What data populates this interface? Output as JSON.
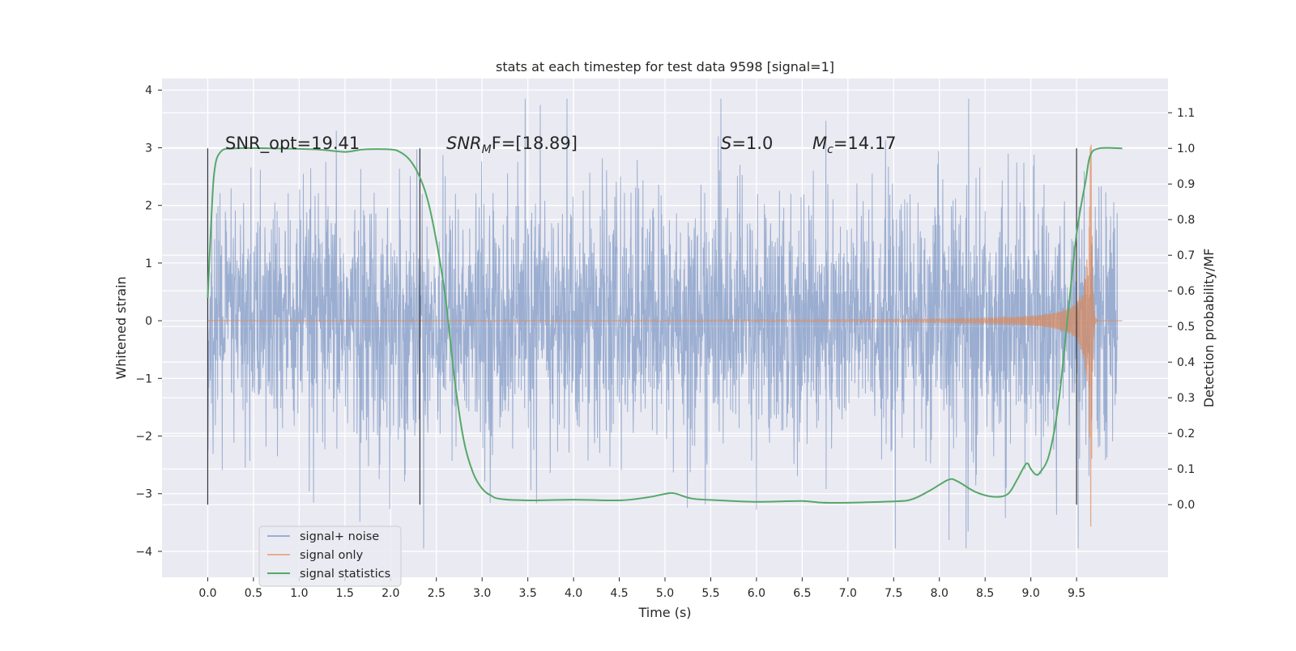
{
  "chart_data": {
    "type": "line",
    "title": "stats at each timestep for test data 9598 [signal=1]",
    "xlabel": "Time (s)",
    "ylabel": "Whitened strain",
    "y2label": "Detection probability/MF",
    "xlim": [
      -0.5,
      10.5
    ],
    "ylim": [
      -4.45,
      4.2
    ],
    "y2lim": [
      -0.204,
      1.196
    ],
    "x_ticks": [
      "0.0",
      "0.5",
      "1.0",
      "1.5",
      "2.0",
      "2.5",
      "3.0",
      "3.5",
      "4.0",
      "4.5",
      "5.0",
      "5.5",
      "6.0",
      "6.5",
      "7.0",
      "7.5",
      "8.0",
      "8.5",
      "9.0",
      "9.5"
    ],
    "y_ticks": [
      "4",
      "3",
      "2",
      "1",
      "0",
      "-1",
      "-2",
      "-3",
      "-4"
    ],
    "y2_ticks": [
      "1.1",
      "1.0",
      "0.9",
      "0.8",
      "0.7",
      "0.6",
      "0.5",
      "0.4",
      "0.3",
      "0.2",
      "0.1",
      "0.0"
    ],
    "grid": true,
    "legend_position": "lower-left",
    "series": [
      {
        "name": "signal+ noise",
        "color": "#4c72b0",
        "axis": "left",
        "description_values": "dense noise oscillating between about -2.5 and 2.5 with spikes up to ±3.8, t from 0.0 to 9.95 s"
      },
      {
        "name": "signal only",
        "color": "#dd8452",
        "axis": "left",
        "chirp": {
          "start": 0.0,
          "merger": 9.66,
          "end": 10.0,
          "amplitude_at_start": 0.02,
          "peak_amplitude": 3.8
        }
      },
      {
        "name": "signal statistics",
        "color": "#55a868",
        "axis": "right",
        "points": [
          [
            0.0,
            0.58
          ],
          [
            0.03,
            0.75
          ],
          [
            0.07,
            0.93
          ],
          [
            0.14,
            0.99
          ],
          [
            0.3,
            1.0
          ],
          [
            0.7,
            1.0
          ],
          [
            1.2,
            0.997
          ],
          [
            1.5,
            0.99
          ],
          [
            1.7,
            0.997
          ],
          [
            2.0,
            0.997
          ],
          [
            2.1,
            0.99
          ],
          [
            2.2,
            0.97
          ],
          [
            2.3,
            0.93
          ],
          [
            2.4,
            0.86
          ],
          [
            2.5,
            0.74
          ],
          [
            2.6,
            0.58
          ],
          [
            2.7,
            0.35
          ],
          [
            2.8,
            0.18
          ],
          [
            2.9,
            0.09
          ],
          [
            3.0,
            0.045
          ],
          [
            3.1,
            0.025
          ],
          [
            3.2,
            0.016
          ],
          [
            3.5,
            0.012
          ],
          [
            4.0,
            0.014
          ],
          [
            4.5,
            0.012
          ],
          [
            4.8,
            0.02
          ],
          [
            5.0,
            0.03
          ],
          [
            5.1,
            0.032
          ],
          [
            5.3,
            0.017
          ],
          [
            5.6,
            0.012
          ],
          [
            6.0,
            0.008
          ],
          [
            6.5,
            0.01
          ],
          [
            6.8,
            0.005
          ],
          [
            7.5,
            0.009
          ],
          [
            7.7,
            0.015
          ],
          [
            7.9,
            0.04
          ],
          [
            8.1,
            0.07
          ],
          [
            8.2,
            0.065
          ],
          [
            8.4,
            0.035
          ],
          [
            8.6,
            0.022
          ],
          [
            8.75,
            0.03
          ],
          [
            8.85,
            0.07
          ],
          [
            8.95,
            0.115
          ],
          [
            9.0,
            0.1
          ],
          [
            9.05,
            0.085
          ],
          [
            9.1,
            0.09
          ],
          [
            9.2,
            0.14
          ],
          [
            9.3,
            0.28
          ],
          [
            9.4,
            0.52
          ],
          [
            9.5,
            0.76
          ],
          [
            9.6,
            0.91
          ],
          [
            9.65,
            0.98
          ],
          [
            9.75,
            1.0
          ],
          [
            10.0,
            1.0
          ]
        ]
      }
    ],
    "vertical_markers": [
      0.0,
      2.32,
      9.5
    ],
    "annotations": {
      "snr_opt": "SNR_opt=19.41",
      "snr_mf_base": "SNR",
      "snr_mf_sub": "M",
      "snr_mf_tail": "F=[18.89]",
      "s_base": "S",
      "s_tail": "=1.0",
      "mc_base": "M",
      "mc_sub": "c",
      "mc_tail": "=14.17"
    },
    "colors": {
      "plot_bg": "#eaeaf2",
      "grid": "#ffffff",
      "marker": "#333333"
    }
  }
}
